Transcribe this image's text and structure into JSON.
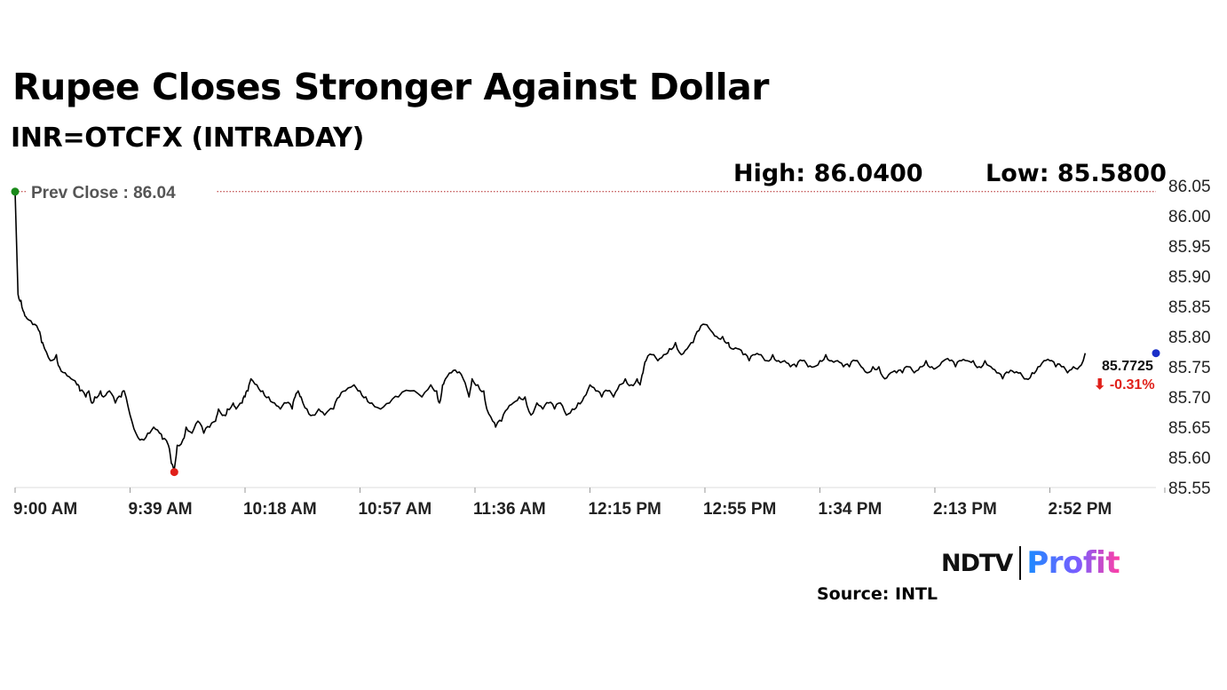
{
  "header": {
    "title": "Rupee Closes Stronger Against Dollar",
    "subtitle": "INR=OTCFX (INTRADAY)",
    "high_label": "High: 86.0400",
    "low_label": "Low: 85.5800"
  },
  "footer": {
    "brand_ndtv": "NDTV",
    "brand_profit": "Profit",
    "source": "Source: INTL"
  },
  "colors": {
    "line": "#000000",
    "prev_close_line": "#b22222",
    "high_marker": "#1a8a1a",
    "low_marker": "#e0201a",
    "last_marker": "#1a2fc8",
    "change_negative": "#e0201a",
    "axis_text": "#222222"
  },
  "chart_data": {
    "type": "line",
    "title": "Rupee Closes Stronger Against Dollar",
    "subtitle": "INR=OTCFX (INTRADAY)",
    "x_unit": "minutes since 9:00 AM",
    "x_tick_labels": [
      "9:00 AM",
      "9:39 AM",
      "10:18 AM",
      "10:57 AM",
      "11:36 AM",
      "12:15 PM",
      "12:55 PM",
      "1:34 PM",
      "2:13 PM",
      "2:52 PM"
    ],
    "x_range_minutes": [
      0,
      387
    ],
    "y_ticks": [
      "86.05",
      "86.00",
      "85.95",
      "85.90",
      "85.85",
      "85.80",
      "85.75",
      "85.70",
      "85.65",
      "85.60",
      "85.55"
    ],
    "ylim": [
      85.55,
      86.05
    ],
    "grid": false,
    "prev_close": 86.04,
    "prev_close_label": "Prev Close : 86.04",
    "high": 86.04,
    "low": 85.58,
    "last_value_label": "85.7725",
    "last_value": 85.7725,
    "change_label": "⬇ -0.31%",
    "series": [
      {
        "points": [
          [
            0,
            86.04
          ],
          [
            1,
            85.87
          ],
          [
            2,
            85.86
          ],
          [
            3,
            85.84
          ],
          [
            4,
            85.83
          ],
          [
            6,
            85.82
          ],
          [
            8,
            85.81
          ],
          [
            9,
            85.79
          ],
          [
            10,
            85.78
          ],
          [
            12,
            85.76
          ],
          [
            14,
            85.77
          ],
          [
            15,
            85.75
          ],
          [
            17,
            85.74
          ],
          [
            19,
            85.73
          ],
          [
            21,
            85.72
          ],
          [
            22,
            85.71
          ],
          [
            24,
            85.7
          ],
          [
            25,
            85.71
          ],
          [
            26,
            85.69
          ],
          [
            27,
            85.7
          ],
          [
            29,
            85.71
          ],
          [
            30,
            85.7
          ],
          [
            32,
            85.71
          ],
          [
            34,
            85.69
          ],
          [
            36,
            85.7
          ],
          [
            37,
            85.71
          ],
          [
            39,
            85.67
          ],
          [
            41,
            85.64
          ],
          [
            43,
            85.63
          ],
          [
            45,
            85.64
          ],
          [
            47,
            85.65
          ],
          [
            49,
            85.64
          ],
          [
            50,
            85.63
          ],
          [
            52,
            85.62
          ],
          [
            53,
            85.59
          ],
          [
            54,
            85.58
          ],
          [
            55,
            85.62
          ],
          [
            57,
            85.63
          ],
          [
            58,
            85.65
          ],
          [
            60,
            85.64
          ],
          [
            62,
            85.66
          ],
          [
            64,
            85.64
          ],
          [
            66,
            85.65
          ],
          [
            68,
            85.66
          ],
          [
            69,
            85.68
          ],
          [
            71,
            85.67
          ],
          [
            72,
            85.68
          ],
          [
            74,
            85.69
          ],
          [
            75,
            85.68
          ],
          [
            77,
            85.69
          ],
          [
            78,
            85.7
          ],
          [
            79,
            85.71
          ],
          [
            80,
            85.73
          ],
          [
            82,
            85.72
          ],
          [
            84,
            85.71
          ],
          [
            86,
            85.7
          ],
          [
            88,
            85.69
          ],
          [
            90,
            85.68
          ],
          [
            92,
            85.69
          ],
          [
            94,
            85.68
          ],
          [
            95,
            85.7
          ],
          [
            96,
            85.71
          ],
          [
            97,
            85.7
          ],
          [
            99,
            85.68
          ],
          [
            101,
            85.67
          ],
          [
            103,
            85.68
          ],
          [
            105,
            85.67
          ],
          [
            108,
            85.68
          ],
          [
            110,
            85.7
          ],
          [
            112,
            85.71
          ],
          [
            115,
            85.72
          ],
          [
            117,
            85.71
          ],
          [
            119,
            85.7
          ],
          [
            121,
            85.69
          ],
          [
            124,
            85.68
          ],
          [
            127,
            85.69
          ],
          [
            130,
            85.7
          ],
          [
            134,
            85.71
          ],
          [
            138,
            85.7
          ],
          [
            141,
            85.72
          ],
          [
            143,
            85.71
          ],
          [
            144,
            85.69
          ],
          [
            145,
            85.72
          ],
          [
            146,
            85.73
          ],
          [
            148,
            85.74
          ],
          [
            150,
            85.74
          ],
          [
            152,
            85.73
          ],
          [
            154,
            85.7
          ],
          [
            155,
            85.73
          ],
          [
            157,
            85.72
          ],
          [
            159,
            85.71
          ],
          [
            160,
            85.68
          ],
          [
            162,
            85.66
          ],
          [
            163,
            85.65
          ],
          [
            165,
            85.66
          ],
          [
            167,
            85.68
          ],
          [
            169,
            85.69
          ],
          [
            171,
            85.7
          ],
          [
            173,
            85.7
          ],
          [
            175,
            85.67
          ],
          [
            177,
            85.69
          ],
          [
            179,
            85.68
          ],
          [
            181,
            85.69
          ],
          [
            183,
            85.68
          ],
          [
            185,
            85.69
          ],
          [
            187,
            85.67
          ],
          [
            189,
            85.68
          ],
          [
            191,
            85.69
          ],
          [
            193,
            85.7
          ],
          [
            195,
            85.72
          ],
          [
            197,
            85.71
          ],
          [
            199,
            85.7
          ],
          [
            201,
            85.71
          ],
          [
            203,
            85.7
          ],
          [
            205,
            85.72
          ],
          [
            207,
            85.73
          ],
          [
            209,
            85.72
          ],
          [
            211,
            85.73
          ],
          [
            212,
            85.72
          ],
          [
            213,
            85.74
          ],
          [
            214,
            85.76
          ],
          [
            216,
            85.77
          ],
          [
            218,
            85.76
          ],
          [
            220,
            85.77
          ],
          [
            222,
            85.78
          ],
          [
            224,
            85.79
          ],
          [
            226,
            85.77
          ],
          [
            228,
            85.78
          ],
          [
            230,
            85.79
          ],
          [
            232,
            85.81
          ],
          [
            234,
            85.82
          ],
          [
            236,
            85.81
          ],
          [
            238,
            85.8
          ],
          [
            240,
            85.8
          ],
          [
            242,
            85.79
          ],
          [
            243,
            85.78
          ],
          [
            245,
            85.78
          ],
          [
            247,
            85.77
          ],
          [
            249,
            85.76
          ],
          [
            251,
            85.77
          ],
          [
            253,
            85.77
          ],
          [
            255,
            85.76
          ],
          [
            257,
            85.77
          ],
          [
            259,
            85.76
          ],
          [
            261,
            85.76
          ],
          [
            263,
            85.75
          ],
          [
            265,
            85.75
          ],
          [
            267,
            85.76
          ],
          [
            269,
            85.75
          ],
          [
            271,
            85.75
          ],
          [
            273,
            85.76
          ],
          [
            275,
            85.77
          ],
          [
            277,
            85.76
          ],
          [
            279,
            85.76
          ],
          [
            281,
            85.75
          ],
          [
            283,
            85.75
          ],
          [
            285,
            85.76
          ],
          [
            287,
            85.75
          ],
          [
            289,
            85.74
          ],
          [
            291,
            85.75
          ],
          [
            293,
            85.75
          ],
          [
            295,
            85.73
          ],
          [
            297,
            85.74
          ],
          [
            299,
            85.74
          ],
          [
            301,
            85.74
          ],
          [
            303,
            85.75
          ],
          [
            305,
            85.74
          ],
          [
            307,
            85.75
          ],
          [
            309,
            85.76
          ],
          [
            311,
            85.75
          ],
          [
            313,
            85.75
          ],
          [
            315,
            85.76
          ],
          [
            317,
            85.76
          ],
          [
            319,
            85.75
          ],
          [
            321,
            85.76
          ],
          [
            323,
            85.76
          ],
          [
            325,
            85.76
          ],
          [
            327,
            85.75
          ],
          [
            329,
            85.76
          ],
          [
            331,
            85.75
          ],
          [
            333,
            85.74
          ],
          [
            335,
            85.73
          ],
          [
            337,
            85.74
          ],
          [
            339,
            85.74
          ],
          [
            341,
            85.74
          ],
          [
            343,
            85.73
          ],
          [
            345,
            85.74
          ],
          [
            347,
            85.75
          ],
          [
            349,
            85.76
          ],
          [
            351,
            85.76
          ],
          [
            353,
            85.75
          ],
          [
            355,
            85.75
          ],
          [
            357,
            85.74
          ],
          [
            359,
            85.75
          ],
          [
            361,
            85.75
          ],
          [
            363,
            85.7725
          ]
        ]
      }
    ]
  }
}
